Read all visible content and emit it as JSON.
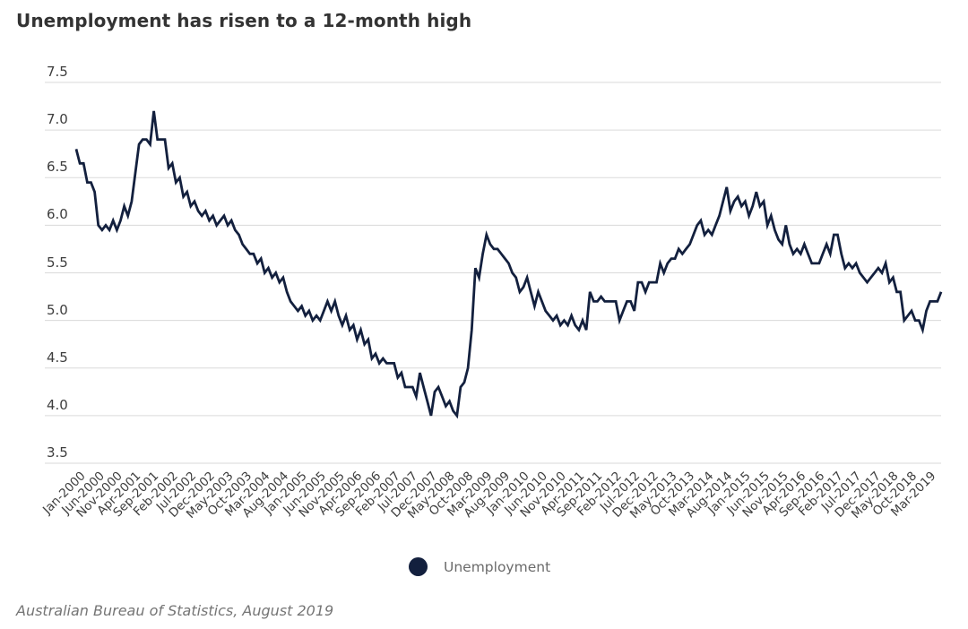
{
  "title": "Unemployment has risen to a 12-month high",
  "source": "Australian Bureau of Statistics, August 2019",
  "legend": {
    "label": "Unemployment",
    "marker": "circle-icon"
  },
  "colors": {
    "line": "#13203e",
    "grid": "#dadada",
    "title_text": "#333333",
    "axis_text": "#3d3d3d",
    "legend_text": "#6b6b6b",
    "source_text": "#757575",
    "background": "#ffffff"
  },
  "y_axis": {
    "tick_labels": [
      "7.5",
      "7.0",
      "6.5",
      "6.0",
      "5.5",
      "5.0",
      "4.5",
      "4.0",
      "3.5"
    ],
    "min": 3.5,
    "max": 7.5
  },
  "x_axis": {
    "tick_labels": [
      "Jan-2000",
      "Jun-2000",
      "Nov-2000",
      "Apr-2001",
      "Sep-2001",
      "Feb-2002",
      "Jul-2002",
      "Dec-2002",
      "May-2003",
      "Oct-2003",
      "Mar-2004",
      "Aug-2004",
      "Jan-2005",
      "Jun-2005",
      "Nov-2005",
      "Apr-2006",
      "Sep-2006",
      "Feb-2007",
      "Jul-2007",
      "Dec-2007",
      "May-2008",
      "Oct-2008",
      "Mar-2009",
      "Aug-2009",
      "Jan-2010",
      "Jun-2010",
      "Nov-2010",
      "Apr-2011",
      "Sep-2011",
      "Feb-2012",
      "Jul-2012",
      "Dec-2012",
      "May-2013",
      "Oct-2013",
      "Mar-2014",
      "Aug-2014",
      "Jan-2015",
      "Jun-2015",
      "Nov-2015",
      "Apr-2016",
      "Sep-2016",
      "Feb-2017",
      "Jul-2017",
      "Dec-2017",
      "May-2018",
      "Oct-2018",
      "Mar-2019"
    ],
    "tick_interval_months": 5,
    "label_rotation_deg": -45
  },
  "chart_data": {
    "type": "line",
    "title": "Unemployment has risen to a 12-month high",
    "xlabel": "",
    "ylabel": "",
    "ylim": [
      3.5,
      7.5
    ],
    "grid": "horizontal",
    "legend_position": "bottom",
    "series": [
      {
        "name": "Unemployment",
        "start_month": "Jan-2000",
        "end_month": "Jul-2019",
        "frequency": "monthly",
        "unit": "percent",
        "values": [
          6.8,
          6.65,
          6.65,
          6.45,
          6.45,
          6.35,
          6.0,
          5.95,
          6.0,
          5.95,
          6.05,
          5.95,
          6.05,
          6.2,
          6.1,
          6.25,
          6.55,
          6.85,
          6.9,
          6.9,
          6.85,
          7.2,
          6.9,
          6.9,
          6.9,
          6.6,
          6.65,
          6.45,
          6.5,
          6.3,
          6.35,
          6.2,
          6.25,
          6.15,
          6.1,
          6.15,
          6.05,
          6.1,
          6.0,
          6.05,
          6.1,
          6.0,
          6.05,
          5.95,
          5.9,
          5.8,
          5.75,
          5.7,
          5.7,
          5.6,
          5.65,
          5.5,
          5.55,
          5.45,
          5.5,
          5.4,
          5.45,
          5.3,
          5.2,
          5.15,
          5.1,
          5.15,
          5.05,
          5.1,
          5.0,
          5.05,
          5.0,
          5.1,
          5.2,
          5.1,
          5.2,
          5.05,
          4.95,
          5.05,
          4.9,
          4.95,
          4.8,
          4.9,
          4.75,
          4.8,
          4.6,
          4.65,
          4.55,
          4.6,
          4.55,
          4.55,
          4.55,
          4.4,
          4.45,
          4.3,
          4.3,
          4.3,
          4.2,
          4.45,
          4.3,
          4.15,
          4.0,
          4.25,
          4.3,
          4.2,
          4.1,
          4.15,
          4.05,
          4.0,
          4.3,
          4.35,
          4.5,
          4.9,
          5.55,
          5.45,
          5.7,
          5.9,
          5.8,
          5.75,
          5.75,
          5.7,
          5.65,
          5.6,
          5.5,
          5.45,
          5.3,
          5.35,
          5.45,
          5.3,
          5.15,
          5.3,
          5.2,
          5.1,
          5.05,
          5.0,
          5.05,
          4.95,
          5.0,
          4.95,
          5.05,
          4.95,
          4.9,
          5.0,
          4.9,
          5.3,
          5.2,
          5.2,
          5.25,
          5.2,
          5.2,
          5.2,
          5.2,
          5.0,
          5.1,
          5.2,
          5.2,
          5.1,
          5.4,
          5.4,
          5.3,
          5.4,
          5.4,
          5.4,
          5.6,
          5.5,
          5.6,
          5.65,
          5.65,
          5.75,
          5.7,
          5.75,
          5.8,
          5.9,
          6.0,
          6.05,
          5.9,
          5.95,
          5.9,
          6.0,
          6.1,
          6.25,
          6.4,
          6.15,
          6.25,
          6.3,
          6.2,
          6.25,
          6.1,
          6.2,
          6.35,
          6.2,
          6.25,
          6.0,
          6.1,
          5.95,
          5.85,
          5.8,
          6.0,
          5.8,
          5.7,
          5.75,
          5.7,
          5.8,
          5.7,
          5.6,
          5.6,
          5.6,
          5.7,
          5.8,
          5.7,
          5.9,
          5.9,
          5.7,
          5.55,
          5.6,
          5.55,
          5.6,
          5.5,
          5.45,
          5.4,
          5.45,
          5.5,
          5.55,
          5.5,
          5.6,
          5.4,
          5.45,
          5.3,
          5.3,
          5.0,
          5.05,
          5.1,
          5.0,
          5.0,
          4.9,
          5.1,
          5.2,
          5.2,
          5.2,
          5.3
        ]
      }
    ]
  }
}
